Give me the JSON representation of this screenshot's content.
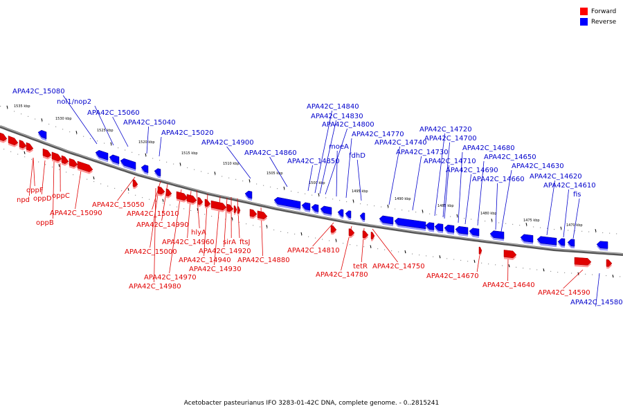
{
  "colors": {
    "forward": "#e00000",
    "reverse": "#0000ff",
    "line": "#777777"
  },
  "legend": [
    {
      "label": "Forward",
      "color": "#ff0000"
    },
    {
      "label": "Reverse",
      "color": "#0000ff"
    }
  ],
  "caption": "Acetobacter pasteurianus IFO 3283-01-42C DNA, complete genome. - 0..2815241",
  "scale_labels": [
    "1535 kbp",
    "1530 kbp",
    "1525 kbp",
    "1520 kbp",
    "1515 kbp",
    "1510 kbp",
    "1505 kbp",
    "1500 kbp",
    "1495 kbp",
    "1490 kbp",
    "1485 kbp",
    "1480 kbp",
    "1475 kbp",
    "1470 kbp"
  ],
  "forward_genes": [
    "oppF",
    "npd",
    "oppD",
    "oppC",
    "oppB",
    "APA42C_15090",
    "APA42C_15050",
    "APA42C_15010",
    "APA42C_14990",
    "APA42C_15000",
    "hlyA",
    "APA42C_14960",
    "APA42C_14980",
    "APA42C_14970",
    "APA42C_14940",
    "APA42C_14930",
    "APA42C_14920",
    "sirA",
    "ftsJ",
    "APA42C_14880",
    "APA42C_14810",
    "APA42C_14780",
    "tetR",
    "APA42C_14750",
    "APA42C_14670",
    "APA42C_14640",
    "APA42C_14590"
  ],
  "reverse_genes": [
    "APA42C_15080",
    "nol1/nop2",
    "APA42C_15060",
    "APA42C_15040",
    "APA42C_15020",
    "APA42C_14900",
    "APA42C_14860",
    "APA42C_14840",
    "APA42C_14830",
    "APA42C_14800",
    "moeA",
    "APA42C_14850",
    "APA42C_14770",
    "fdhD",
    "APA42C_14740",
    "APA42C_14720",
    "APA42C_14700",
    "APA42C_14730",
    "APA42C_14680",
    "APA42C_14710",
    "APA42C_14650",
    "APA42C_14690",
    "APA42C_14630",
    "APA42C_14660",
    "APA42C_14620",
    "APA42C_14610",
    "fis",
    "APA42C_14580"
  ]
}
